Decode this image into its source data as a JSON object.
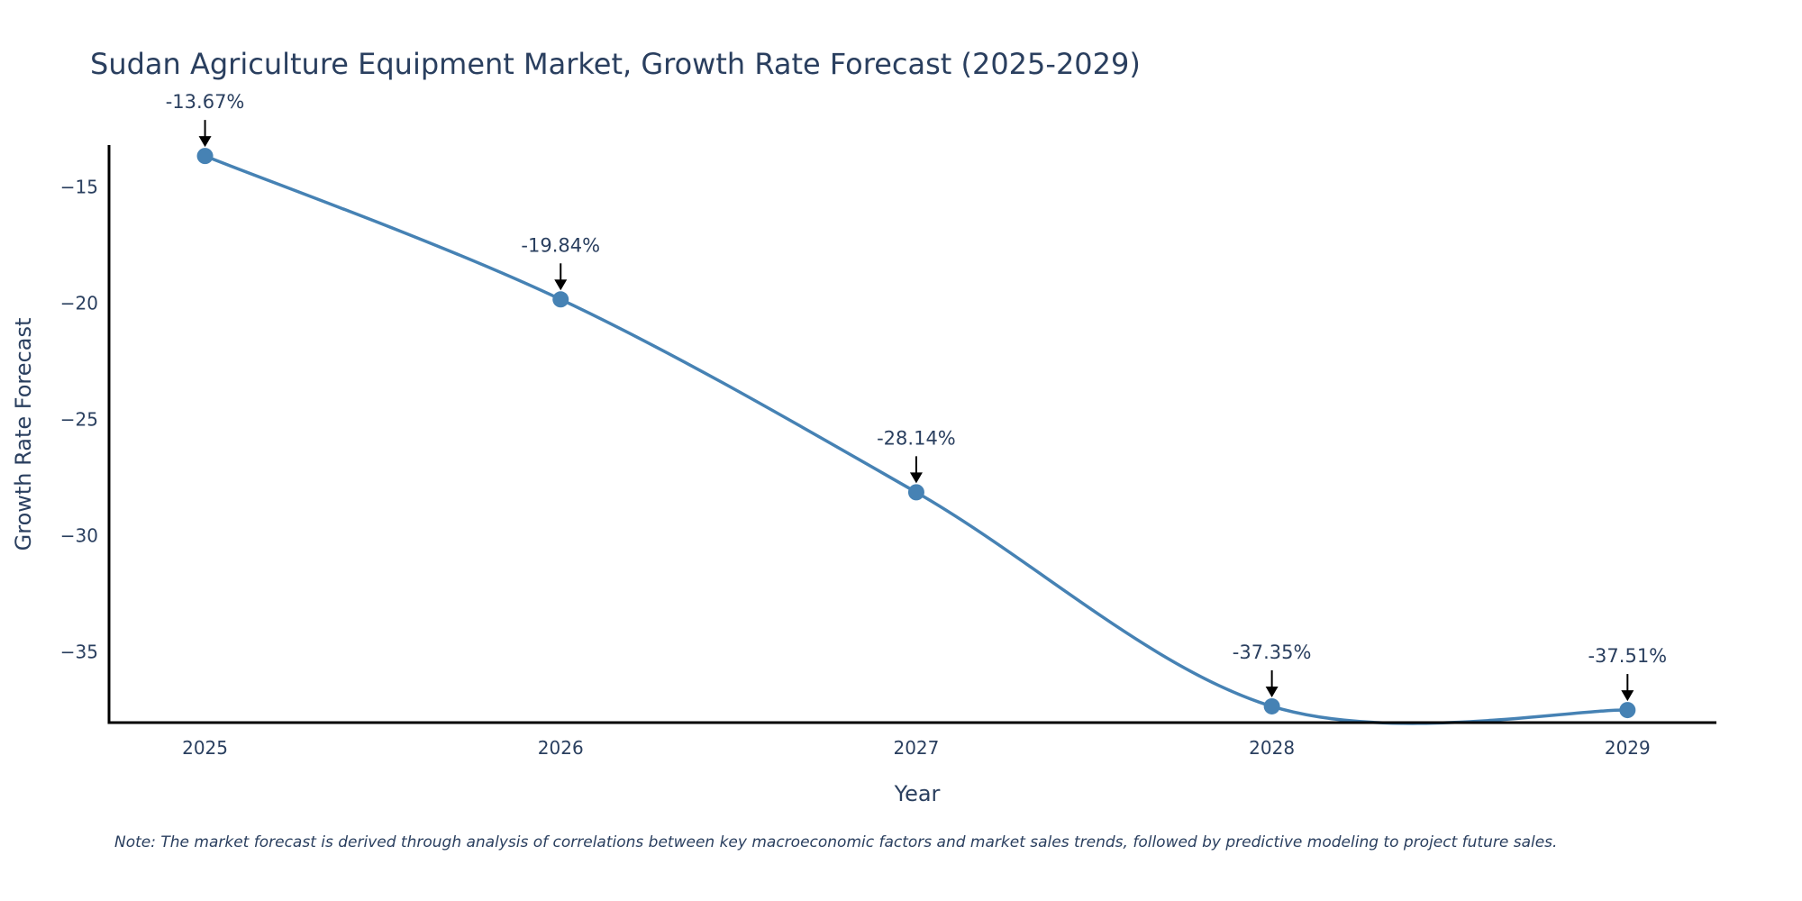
{
  "chart_data": {
    "type": "line",
    "title": "Sudan Agriculture Equipment Market, Growth Rate Forecast (2025-2029)",
    "xlabel": "Year",
    "ylabel": "Growth Rate Forecast",
    "categories": [
      "2025",
      "2026",
      "2027",
      "2028",
      "2029"
    ],
    "series": [
      {
        "name": "Growth Rate Forecast",
        "values": [
          -13.67,
          -19.84,
          -28.14,
          -37.35,
          -37.51
        ]
      }
    ],
    "data_labels": [
      "-13.67%",
      "-19.84%",
      "-28.14%",
      "-37.35%",
      "-37.51%"
    ],
    "yticks": [
      -15,
      -20,
      -25,
      -30,
      -35
    ],
    "ytick_labels": [
      "−15",
      "−20",
      "−25",
      "−30",
      "−35"
    ],
    "xlim": [
      2024.73,
      2029.25
    ],
    "ylim": [
      -38.05,
      -13.2
    ],
    "grid": false,
    "line_color": "#4682b4",
    "marker_color": "#4682b4",
    "axis_color": "#000000",
    "text_color": "#2a3f5f",
    "note": "Note: The market forecast is derived through analysis of correlations between key macroeconomic factors and market sales trends, followed by predictive modeling to project future sales."
  }
}
